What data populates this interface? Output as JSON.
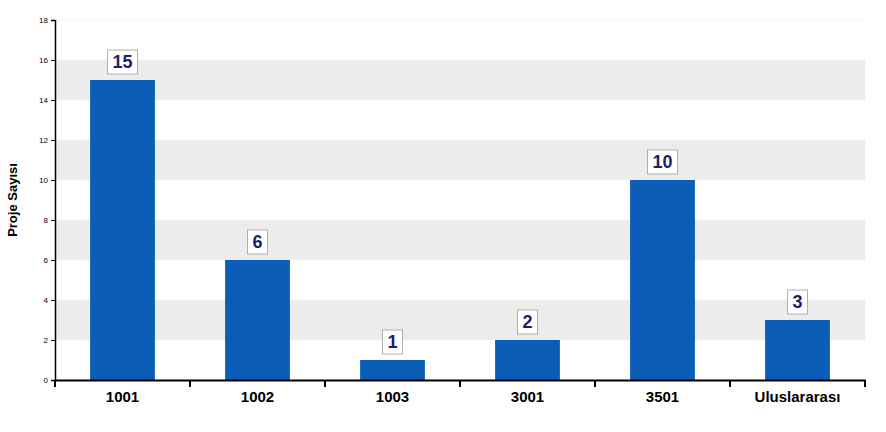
{
  "chart_data": {
    "type": "bar",
    "y_label": "Proje Sayısı",
    "categories": [
      "1001",
      "1002",
      "1003",
      "3001",
      "3501",
      "Uluslararası"
    ],
    "values": [
      15,
      6,
      1,
      2,
      10,
      3
    ],
    "color": "#0b5db6",
    "ylim": [
      0,
      18
    ],
    "yticks": [
      0,
      2,
      4,
      6,
      8,
      10,
      12,
      14,
      16,
      18
    ],
    "grid": true,
    "data_labels": true
  }
}
